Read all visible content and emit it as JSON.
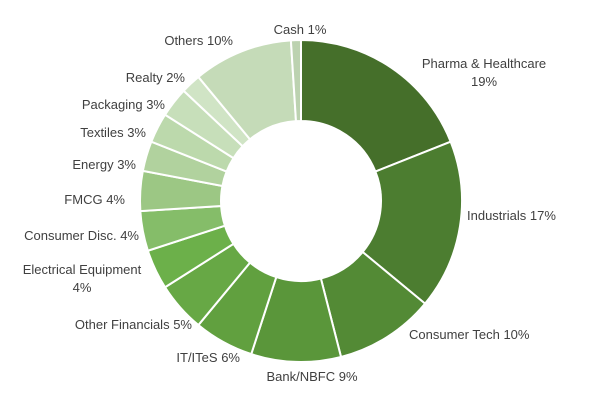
{
  "chart_data": {
    "type": "pie",
    "donut": true,
    "title": "",
    "slices": [
      {
        "label": "Pharma & Healthcare",
        "value_text": "19%",
        "value": 19,
        "color": "#456f2a"
      },
      {
        "label": "Industrials",
        "value_text": "17%",
        "value": 17,
        "color": "#4c7d30"
      },
      {
        "label": "Consumer Tech",
        "value_text": "10%",
        "value": 10,
        "color": "#538a35"
      },
      {
        "label": "Bank/NBFC",
        "value_text": "9%",
        "value": 9,
        "color": "#5a963a"
      },
      {
        "label": "IT/ITeS",
        "value_text": "6%",
        "value": 6,
        "color": "#61a03f"
      },
      {
        "label": "Other Financials",
        "value_text": "5%",
        "value": 5,
        "color": "#67a845"
      },
      {
        "label": "Electrical Equipment",
        "value_text": "4%",
        "value": 4,
        "color": "#6cb04a"
      },
      {
        "label": "Consumer Disc.",
        "value_text": "4%",
        "value": 4,
        "color": "#85bd69"
      },
      {
        "label": "FMCG",
        "value_text": "4%",
        "value": 4,
        "color": "#9cc784"
      },
      {
        "label": "Energy",
        "value_text": "3%",
        "value": 3,
        "color": "#b1d29e"
      },
      {
        "label": "Textiles",
        "value_text": "3%",
        "value": 3,
        "color": "#bcd9ac"
      },
      {
        "label": "Packaging",
        "value_text": "3%",
        "value": 3,
        "color": "#c7dfba"
      },
      {
        "label": "Realty",
        "value_text": "2%",
        "value": 2,
        "color": "#d0e4c5"
      },
      {
        "label": "Others",
        "value_text": "10%",
        "value": 10,
        "color": "#c5dbb8"
      },
      {
        "label": "Cash",
        "value_text": "1%",
        "value": 1,
        "color": "#bcd2b0"
      }
    ]
  }
}
